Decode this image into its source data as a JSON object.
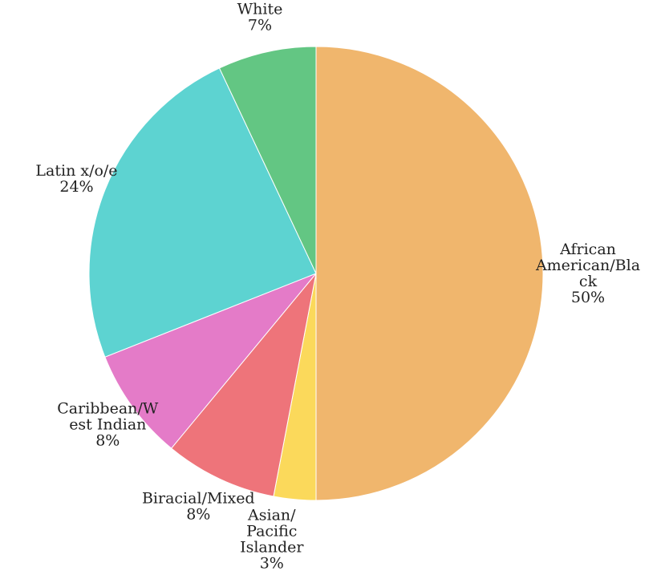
{
  "chart_data": {
    "type": "pie",
    "title": "",
    "slices": [
      {
        "label_lines": [
          "African",
          "American/Bla",
          "ck"
        ],
        "pct_label": "50%",
        "value": 50,
        "color": "#F0B66D"
      },
      {
        "label_lines": [
          "Asian/",
          "Pacific",
          "Islander"
        ],
        "pct_label": "3%",
        "value": 3,
        "color": "#FBD95B"
      },
      {
        "label_lines": [
          "Biracial/Mixed"
        ],
        "pct_label": "8%",
        "value": 8,
        "color": "#EE747A"
      },
      {
        "label_lines": [
          "Caribbean/W",
          "est Indian"
        ],
        "pct_label": "8%",
        "value": 8,
        "color": "#E47BC8"
      },
      {
        "label_lines": [
          "Latin x/o/e"
        ],
        "pct_label": "24%",
        "value": 24,
        "color": "#5DD3D1"
      },
      {
        "label_lines": [
          "White"
        ],
        "pct_label": "7%",
        "value": 7,
        "color": "#63C683"
      }
    ],
    "start_angle": "12 o'clock",
    "direction": "clockwise",
    "legend": "none"
  }
}
